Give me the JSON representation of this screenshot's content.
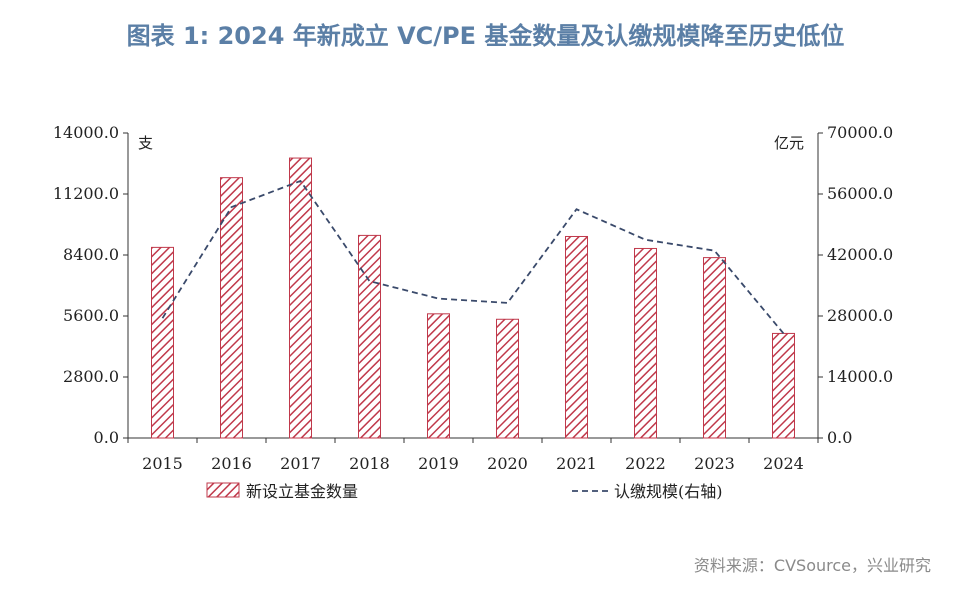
{
  "title": "图表  1: 2024 年新成立 VC/PE 基金数量及认缴规模降至历史低位",
  "source": "资料来源：CVSource，兴业研究",
  "chart_data": {
    "type": "bar",
    "categories": [
      "2015",
      "2016",
      "2017",
      "2018",
      "2019",
      "2020",
      "2021",
      "2022",
      "2023",
      "2024"
    ],
    "series": [
      {
        "name": "新设立基金数量",
        "type": "bar",
        "axis": "left",
        "color": "#c0394b",
        "pattern": "diagonal-hatch",
        "values": [
          8750,
          11950,
          12850,
          9300,
          5700,
          5450,
          9250,
          8700,
          8280,
          4800
        ]
      },
      {
        "name": "认缴规模(右轴)",
        "type": "line",
        "axis": "right",
        "color": "#3a4a6b",
        "dash": "dashed",
        "values": [
          27500,
          53000,
          59000,
          36000,
          32000,
          31000,
          52500,
          45500,
          43000,
          24000
        ]
      }
    ],
    "left_axis": {
      "unit": "支",
      "min": 0,
      "max": 14000,
      "ticks": [
        "0.0",
        "2800.0",
        "5600.0",
        "8400.0",
        "11200.0",
        "14000.0"
      ]
    },
    "right_axis": {
      "unit": "亿元",
      "min": 0,
      "max": 70000,
      "ticks": [
        "0.0",
        "14000.0",
        "28000.0",
        "42000.0",
        "56000.0",
        "70000.0"
      ]
    },
    "legend_position": "bottom",
    "grid": false
  }
}
